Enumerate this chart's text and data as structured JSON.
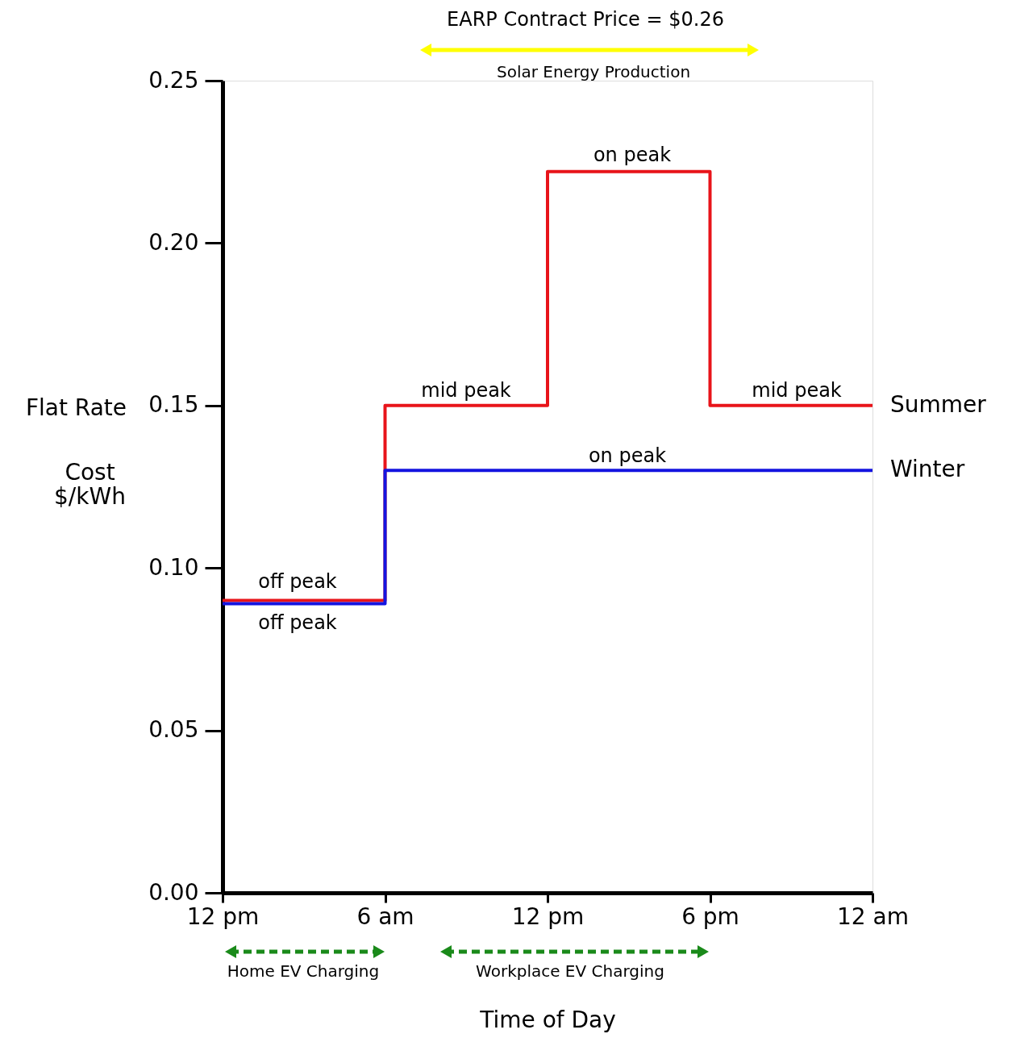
{
  "chart_data": {
    "type": "step",
    "title": "EARP Contract Price = $0.26",
    "xlabel": "Time of Day",
    "ylabel": "Cost $/kWh",
    "categories": [
      "12 pm",
      "6 am",
      "12 pm",
      "6 pm",
      "12 am"
    ],
    "series": [
      {
        "name": "Summer",
        "color": "#e8141a",
        "values": [
          0.09,
          0.15,
          0.222,
          0.15,
          0.15
        ]
      },
      {
        "name": "Winter",
        "color": "#1414e0",
        "values": [
          0.089,
          0.13,
          0.13,
          0.13,
          0.13
        ]
      }
    ],
    "ylim": [
      0,
      0.25
    ],
    "yticks": [
      {
        "value": 0,
        "label": "0.00"
      },
      {
        "value": 0.05,
        "label": "0.05"
      },
      {
        "value": 0.1,
        "label": "0.10"
      },
      {
        "value": 0.15,
        "label": "0.15"
      },
      {
        "value": 0.2,
        "label": "0.20"
      },
      {
        "value": 0.25,
        "label": "0.25"
      }
    ],
    "annotations": [
      "on peak",
      "mid peak",
      "mid peak",
      "on peak",
      "off peak",
      "off peak",
      "Flat Rate",
      "Solar Energy Production",
      "Home EV Charging",
      "Workplace EV Charging"
    ],
    "grid": false,
    "legend": false,
    "line_style": "solid",
    "marker": "none"
  }
}
